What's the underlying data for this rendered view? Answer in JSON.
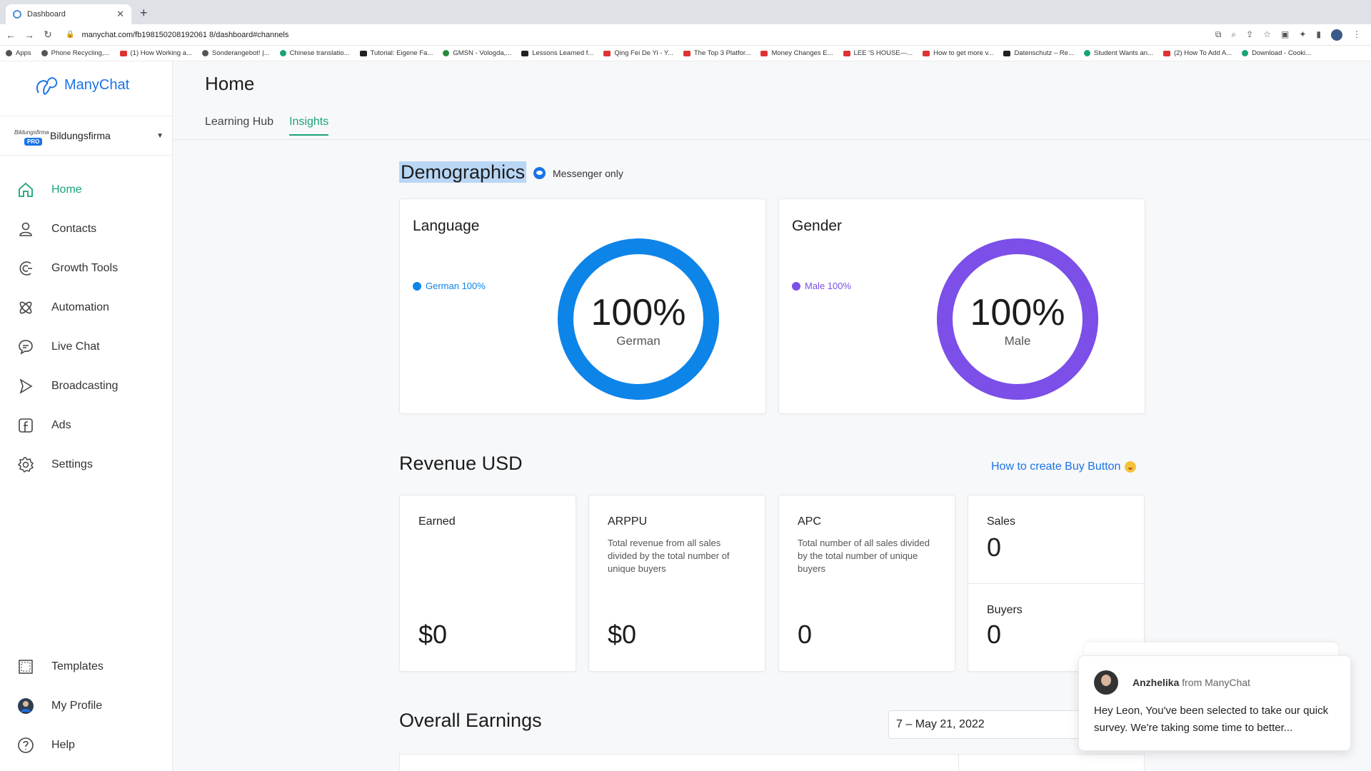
{
  "browser": {
    "tab_title": "Dashboard",
    "url": "manychat.com/fb198150208192061 8/dashboard#channels",
    "bookmarks": [
      "Apps",
      "Phone Recycling,...",
      "(1) How Working a...",
      "Sonderangebot! |...",
      "Chinese translatio...",
      "Tutorial: Eigene Fa...",
      "GMSN - Vologda,...",
      "Lessons Learned f...",
      "Qing Fei De Yi - Y...",
      "The Top 3 Platfor...",
      "Money Changes E...",
      "LEE 'S HOUSE—...",
      "How to get more v...",
      "Datenschutz – Re...",
      "Student Wants an...",
      "(2) How To Add A...",
      "Download - Cooki..."
    ]
  },
  "sidebar": {
    "brand": "ManyChat",
    "account": {
      "name": "Bildungsfirma",
      "badge": "PRO",
      "logo_text": "Bildungsfirma"
    },
    "items": [
      {
        "label": "Home",
        "icon": "home-icon",
        "active": true
      },
      {
        "label": "Contacts",
        "icon": "person-icon"
      },
      {
        "label": "Growth Tools",
        "icon": "growth-icon"
      },
      {
        "label": "Automation",
        "icon": "automation-icon"
      },
      {
        "label": "Live Chat",
        "icon": "chat-bubble-icon"
      },
      {
        "label": "Broadcasting",
        "icon": "send-icon"
      },
      {
        "label": "Ads",
        "icon": "facebook-icon"
      },
      {
        "label": "Settings",
        "icon": "gear-icon"
      }
    ],
    "bottom_items": [
      {
        "label": "Templates",
        "icon": "templates-icon"
      },
      {
        "label": "My Profile",
        "icon": "avatar-icon"
      },
      {
        "label": "Help",
        "icon": "help-icon"
      }
    ]
  },
  "header": {
    "title": "Home",
    "tabs": [
      {
        "label": "Learning Hub",
        "active": false
      },
      {
        "label": "Insights",
        "active": true
      }
    ]
  },
  "demographics": {
    "title": "Demographics",
    "channel_note": "Messenger only",
    "language": {
      "title": "Language",
      "legend": "German 100%",
      "percent": "100%",
      "center_label": "German",
      "value": 100,
      "color": "#0d84e8"
    },
    "gender": {
      "title": "Gender",
      "legend": "Male 100%",
      "percent": "100%",
      "center_label": "Male",
      "value": 100,
      "color": "#7b4fe8"
    }
  },
  "revenue": {
    "title": "Revenue USD",
    "help_link": "How to create Buy Button",
    "earned": {
      "label": "Earned",
      "value": "$0"
    },
    "arppu": {
      "label": "ARPPU",
      "desc": "Total revenue from all sales divided by the total number of unique buyers",
      "value": "$0"
    },
    "apc": {
      "label": "APC",
      "desc": "Total number of all sales divided by the total number of unique buyers",
      "value": "0"
    },
    "sales": {
      "label": "Sales",
      "value": "0"
    },
    "buyers": {
      "label": "Buyers",
      "value": "0"
    }
  },
  "earnings": {
    "title": "Overall Earnings",
    "date_range": "7 – May 21, 2022"
  },
  "chat_popup": {
    "sender": "Anzhelika",
    "from_text": "from ManyChat",
    "message": "Hey Leon,  You've been selected to take our quick survey. We're taking some time to better..."
  },
  "colors": {
    "accent": "#1aa37a",
    "link": "#1b73e8"
  }
}
